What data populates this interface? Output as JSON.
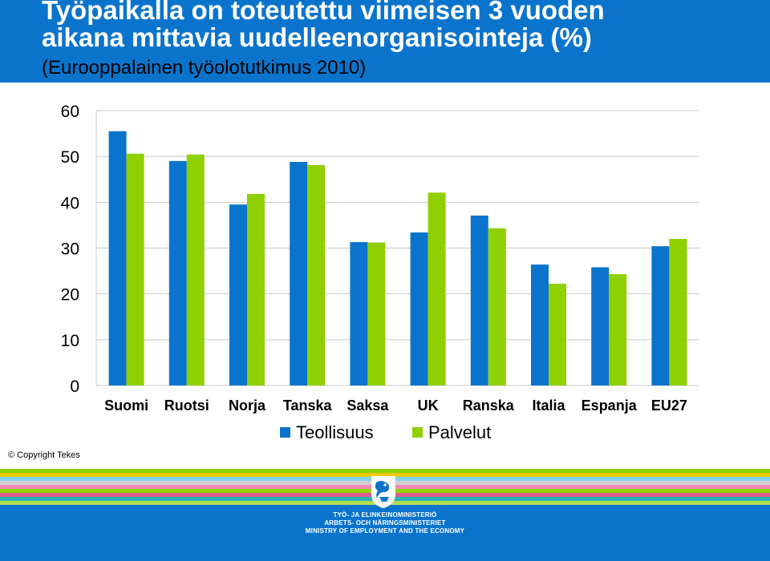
{
  "header": {
    "title_line1": "Työpaikalla on toteutettu viimeisen 3 vuoden",
    "title_line2": "aikana mittavia uudelleenorganisointeja (%)",
    "subtitle": "(Eurooppalainen työolotutkimus 2010)"
  },
  "copyright": "© Copyright Tekes",
  "ministry": {
    "line1": "TYÖ- JA ELINKEINOMINISTERIÖ",
    "line2": "ARBETS- OCH NÄRINGSMINISTERIET",
    "line3": "MINISTRY OF EMPLOYMENT AND THE ECONOMY",
    "logo_icon": "lion-crest-icon"
  },
  "colors": {
    "header_bg": "#0a74cc",
    "series_teollisuus": "#0a74cc",
    "series_palvelut": "#8fd000",
    "footer_stripes": [
      "#8fd000",
      "#f0c800",
      "#7fd3f0",
      "#d0d0d0",
      "#f08cb4",
      "#8fd000",
      "#e05c8c",
      "#28b4b4",
      "#b4dc50"
    ]
  },
  "chart_data": {
    "type": "bar",
    "categories": [
      "Suomi",
      "Ruotsi",
      "Norja",
      "Tanska",
      "Saksa",
      "UK",
      "Ranska",
      "Italia",
      "Espanja",
      "EU27"
    ],
    "series": [
      {
        "name": "Teollisuus",
        "values": [
          55.5,
          49,
          39.5,
          48.8,
          31.3,
          33.4,
          37.1,
          26.4,
          25.8,
          30.4
        ]
      },
      {
        "name": "Palvelut",
        "values": [
          50.6,
          50.4,
          41.8,
          48.1,
          31.2,
          42.1,
          34.3,
          22.2,
          24.3,
          32
        ]
      }
    ],
    "yticks": [
      "0",
      "10",
      "20",
      "30",
      "40",
      "50",
      "60"
    ],
    "ylim": [
      0,
      60
    ],
    "grid": true,
    "legend_position": "bottom"
  }
}
